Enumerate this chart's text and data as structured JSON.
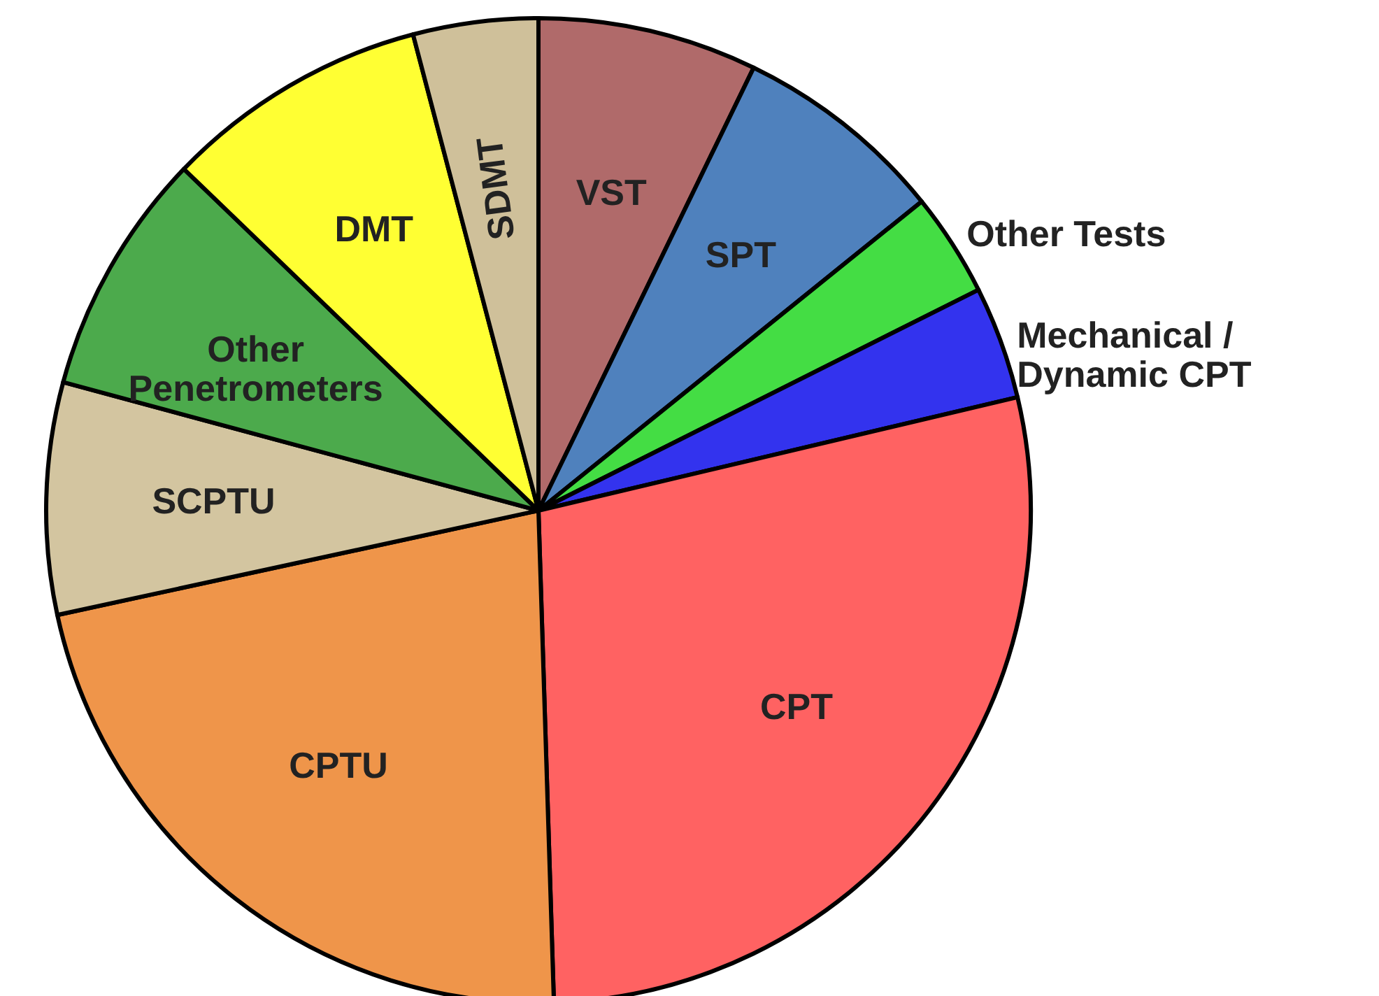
{
  "chart_data": {
    "type": "pie",
    "categories": [
      "VST",
      "SPT",
      "Other Tests",
      "Mechanical /\nDynamic CPT",
      "CPT",
      "CPTU",
      "SCPTU",
      "Other\nPenetrometers",
      "DMT",
      "SDMT"
    ],
    "values": [
      7.2,
      7.0,
      3.4,
      3.7,
      28.2,
      22.1,
      7.6,
      8.0,
      8.7,
      4.1
    ],
    "colors": [
      "#b06a6a",
      "#4f81bd",
      "#44dd44",
      "#3333ee",
      "#ff6262",
      "#ef954a",
      "#d3c5a0",
      "#4caa4c",
      "#ffff33",
      "#cfc09a"
    ]
  }
}
